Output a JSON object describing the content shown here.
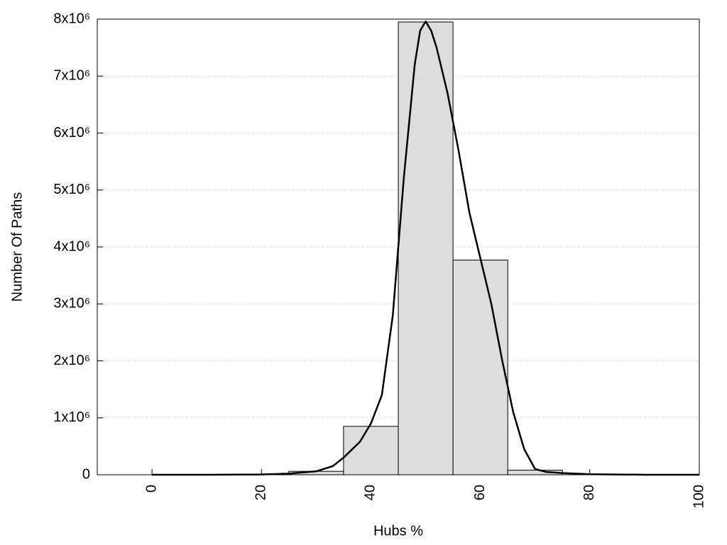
{
  "chart_data": {
    "type": "histogram",
    "xlabel": "Hubs %",
    "ylabel": "Number Of Paths",
    "bins": [
      25,
      35,
      45,
      55,
      65,
      75
    ],
    "values": [
      60000,
      850000,
      7950000,
      3770000,
      80000
    ],
    "color": "#dddddd",
    "xlim": [
      -10,
      100
    ],
    "xticks": [
      0,
      20,
      40,
      60,
      80,
      100
    ],
    "ylim": [
      0,
      8000000
    ],
    "yticks": [
      0,
      {
        "value": 1000000,
        "label": "1x10⁶"
      },
      {
        "value": 2000000,
        "label": "2x10⁶"
      },
      {
        "value": 3000000,
        "label": "3x10⁶"
      },
      {
        "value": 4000000,
        "label": "4x10⁶"
      },
      {
        "value": 5000000,
        "label": "5x10⁶"
      },
      {
        "value": 6000000,
        "label": "6x10⁶"
      },
      {
        "value": 7000000,
        "label": "7x10⁶"
      },
      {
        "value": 8000000,
        "label": "8x10⁶"
      }
    ],
    "grid": true,
    "curve": {
      "type": "line",
      "color": "#000000",
      "x": [
        0,
        10,
        20,
        25,
        30,
        33,
        35,
        38,
        40,
        42,
        44,
        46,
        48,
        49,
        50,
        51,
        52,
        54,
        56,
        58,
        60,
        62,
        64,
        66,
        68,
        70,
        72,
        75,
        80,
        90,
        100
      ],
      "values": [
        0,
        0,
        5000,
        20000,
        60000,
        150000,
        300000,
        580000,
        900000,
        1400000,
        2800000,
        5200000,
        7200000,
        7800000,
        7960000,
        7800000,
        7500000,
        6700000,
        5700000,
        4600000,
        3800000,
        3000000,
        2000000,
        1100000,
        450000,
        100000,
        50000,
        30000,
        10000,
        0,
        0
      ]
    }
  }
}
